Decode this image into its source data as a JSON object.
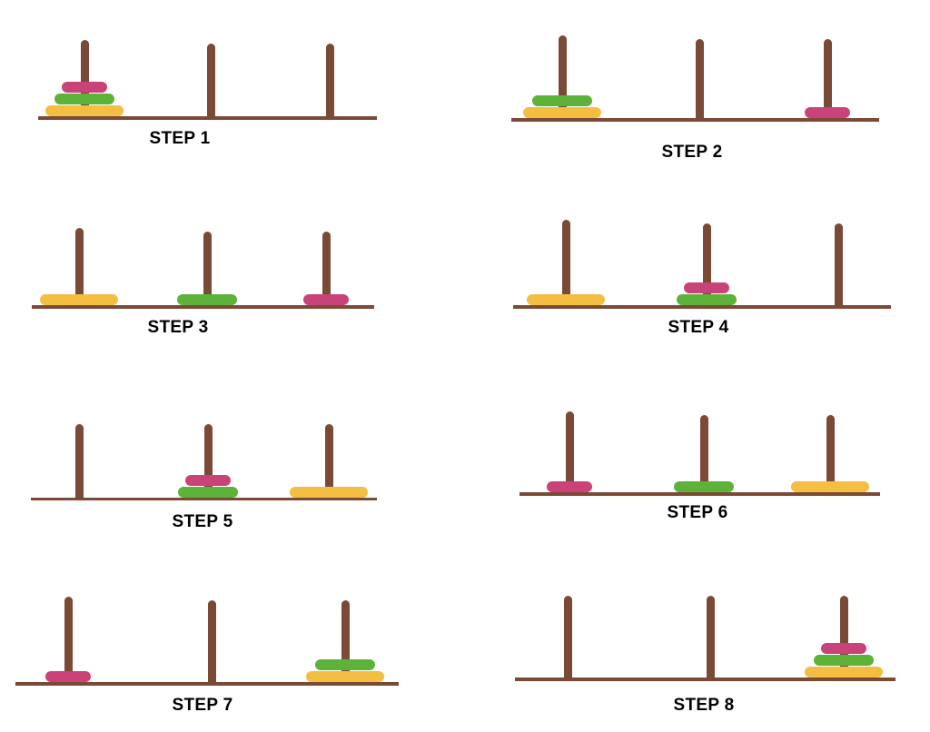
{
  "colors": {
    "wood": "#7b4a37",
    "large_disk": "#f3be41",
    "medium_disk": "#5db23a",
    "small_disk": "#c9427a",
    "label": "#000000",
    "background": "#ffffff"
  },
  "steps": [
    {
      "label": "STEP 1",
      "pegs": [
        [
          "large",
          "medium",
          "small"
        ],
        [],
        []
      ]
    },
    {
      "label": "STEP 2",
      "pegs": [
        [
          "large",
          "medium"
        ],
        [],
        [
          "small"
        ]
      ]
    },
    {
      "label": "STEP 3",
      "pegs": [
        [
          "large"
        ],
        [
          "medium"
        ],
        [
          "small"
        ]
      ]
    },
    {
      "label": "STEP 4",
      "pegs": [
        [
          "large"
        ],
        [
          "medium",
          "small"
        ],
        []
      ]
    },
    {
      "label": "STEP 5",
      "pegs": [
        [],
        [
          "medium",
          "small"
        ],
        [
          "large"
        ]
      ]
    },
    {
      "label": "STEP 6",
      "pegs": [
        [
          "small"
        ],
        [
          "medium"
        ],
        [
          "large"
        ]
      ]
    },
    {
      "label": "STEP 7",
      "pegs": [
        [
          "small"
        ],
        [],
        [
          "large",
          "medium"
        ]
      ]
    },
    {
      "label": "STEP 8",
      "pegs": [
        [],
        [],
        [
          "large",
          "medium",
          "small"
        ]
      ]
    }
  ]
}
